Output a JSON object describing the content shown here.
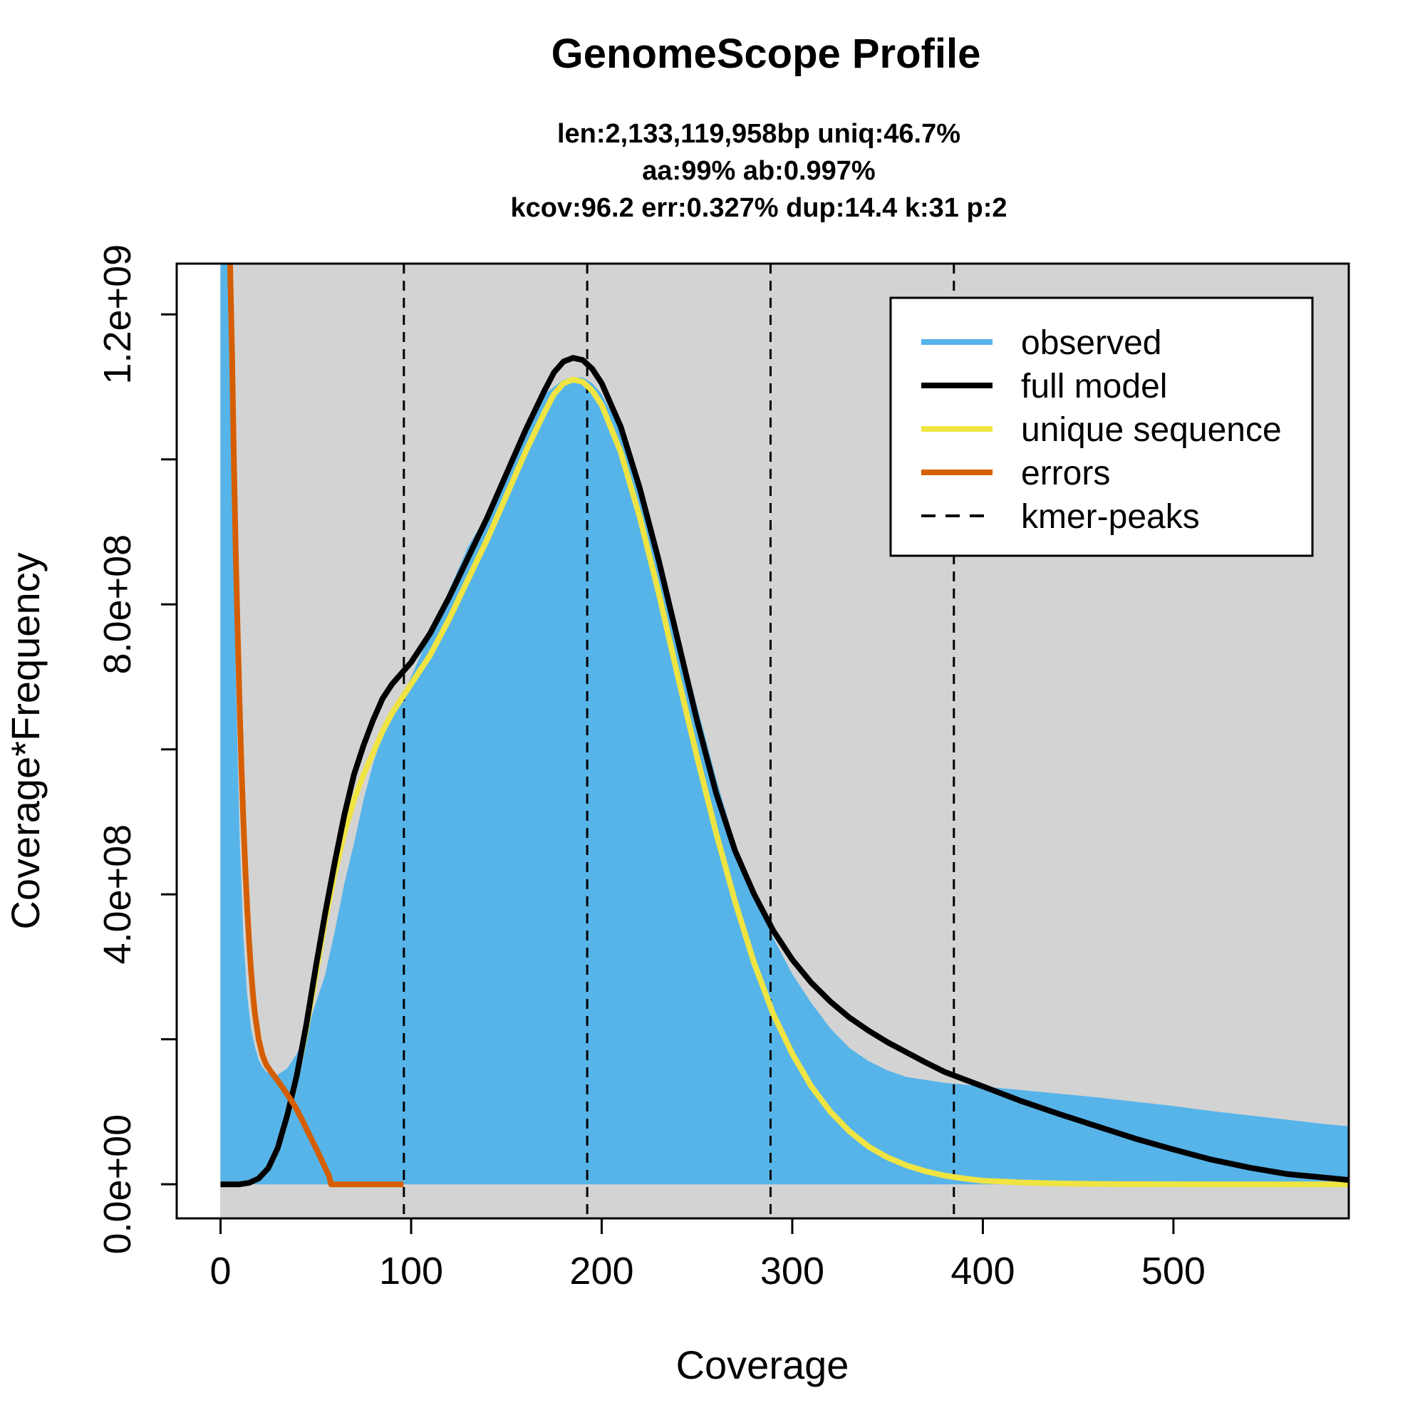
{
  "chart_data": {
    "type": "area",
    "title": "GenomeScope Profile",
    "subtitle_lines": [
      "len:2,133,119,958bp uniq:46.7%",
      "aa:99% ab:0.997%",
      "kcov:96.2 err:0.327%  dup:14.4  k:31 p:2"
    ],
    "xlabel": "Coverage",
    "ylabel": "Coverage*Frequency",
    "xlim": [
      -23,
      592
    ],
    "ylim": [
      -47000000,
      1270000000
    ],
    "x_ticks": [
      0,
      100,
      200,
      300,
      400,
      500
    ],
    "x_tick_labels": [
      "0",
      "100",
      "200",
      "300",
      "400",
      "500"
    ],
    "y_ticks": [
      0,
      200000000,
      400000000,
      600000000,
      800000000,
      1000000000,
      1200000000
    ],
    "y_tick_labels": [
      "0.0e+00",
      "",
      "4.0e+08",
      "",
      "8.0e+08",
      "",
      "1.2e+09"
    ],
    "grid": false,
    "background_color": "#d3d3d3",
    "legend_position": "top-right",
    "kmer_peaks": [
      96.2,
      192.4,
      288.6,
      384.8
    ],
    "series": [
      {
        "name": "observed",
        "style": "filled-area",
        "color": "#56b4e9",
        "x": [
          0,
          2,
          4,
          6,
          8,
          10,
          12,
          14,
          16,
          18,
          20,
          22,
          24,
          26,
          28,
          30,
          35,
          40,
          45,
          50,
          55,
          60,
          65,
          70,
          75,
          80,
          85,
          90,
          95,
          100,
          110,
          120,
          130,
          140,
          150,
          160,
          170,
          175,
          180,
          185,
          190,
          195,
          200,
          210,
          220,
          230,
          240,
          250,
          260,
          270,
          280,
          290,
          300,
          310,
          320,
          330,
          340,
          350,
          360,
          380,
          400,
          420,
          440,
          460,
          480,
          500,
          520,
          540,
          560,
          580,
          592
        ],
        "values": [
          1270000000,
          1270000000,
          1270000000,
          1000000000,
          700000000,
          480000000,
          340000000,
          260000000,
          215000000,
          190000000,
          172000000,
          162000000,
          155000000,
          152000000,
          150000000,
          151000000,
          160000000,
          180000000,
          210000000,
          250000000,
          290000000,
          350000000,
          415000000,
          470000000,
          530000000,
          580000000,
          620000000,
          650000000,
          670000000,
          700000000,
          760000000,
          820000000,
          880000000,
          925000000,
          980000000,
          1040000000,
          1090000000,
          1100000000,
          1110000000,
          1113000000,
          1113000000,
          1105000000,
          1090000000,
          1040000000,
          960000000,
          860000000,
          760000000,
          660000000,
          560000000,
          470000000,
          400000000,
          340000000,
          290000000,
          250000000,
          215000000,
          188000000,
          170000000,
          157000000,
          148000000,
          140000000,
          135000000,
          130000000,
          125000000,
          120000000,
          114000000,
          108000000,
          101000000,
          95000000,
          89000000,
          83000000,
          80000000
        ]
      },
      {
        "name": "full model",
        "style": "line",
        "color": "#000000",
        "x": [
          0,
          10,
          15,
          20,
          25,
          30,
          35,
          40,
          45,
          50,
          55,
          60,
          65,
          70,
          75,
          80,
          85,
          90,
          95,
          100,
          110,
          120,
          130,
          140,
          150,
          160,
          170,
          175,
          180,
          185,
          190,
          195,
          200,
          210,
          220,
          230,
          240,
          250,
          260,
          270,
          280,
          290,
          300,
          310,
          320,
          330,
          340,
          350,
          360,
          370,
          380,
          400,
          420,
          440,
          460,
          480,
          500,
          520,
          540,
          560,
          580,
          592
        ],
        "values": [
          0,
          0,
          2000000,
          8000000,
          22000000,
          50000000,
          95000000,
          150000000,
          220000000,
          300000000,
          375000000,
          445000000,
          510000000,
          565000000,
          605000000,
          640000000,
          670000000,
          690000000,
          705000000,
          720000000,
          760000000,
          810000000,
          865000000,
          920000000,
          980000000,
          1040000000,
          1095000000,
          1120000000,
          1135000000,
          1140000000,
          1137000000,
          1125000000,
          1105000000,
          1045000000,
          960000000,
          860000000,
          750000000,
          640000000,
          540000000,
          460000000,
          400000000,
          350000000,
          310000000,
          278000000,
          252000000,
          230000000,
          212000000,
          196000000,
          182000000,
          168000000,
          155000000,
          135000000,
          115000000,
          97000000,
          80000000,
          63000000,
          48000000,
          34000000,
          23000000,
          14000000,
          9000000,
          6000000
        ]
      },
      {
        "name": "unique sequence",
        "style": "line",
        "color": "#f0e442",
        "x": [
          0,
          10,
          15,
          20,
          25,
          30,
          35,
          40,
          45,
          50,
          55,
          60,
          65,
          70,
          75,
          80,
          85,
          90,
          95,
          100,
          110,
          120,
          130,
          140,
          150,
          160,
          170,
          175,
          180,
          185,
          190,
          195,
          200,
          210,
          220,
          230,
          240,
          250,
          260,
          270,
          280,
          290,
          300,
          310,
          320,
          330,
          340,
          350,
          360,
          370,
          380,
          390,
          400,
          420,
          440,
          460,
          480,
          500,
          520,
          540,
          560,
          580,
          592
        ],
        "values": [
          0,
          0,
          2000000,
          8000000,
          22000000,
          50000000,
          95000000,
          150000000,
          215000000,
          290000000,
          365000000,
          430000000,
          485000000,
          530000000,
          565000000,
          595000000,
          625000000,
          650000000,
          670000000,
          690000000,
          730000000,
          780000000,
          835000000,
          890000000,
          950000000,
          1010000000,
          1065000000,
          1090000000,
          1105000000,
          1110000000,
          1107000000,
          1095000000,
          1075000000,
          1010000000,
          920000000,
          815000000,
          700000000,
          590000000,
          485000000,
          390000000,
          305000000,
          235000000,
          180000000,
          135000000,
          100000000,
          73000000,
          52000000,
          37000000,
          26000000,
          18000000,
          12000000,
          8000000,
          5000000,
          2500000,
          1200000,
          500000,
          200000,
          100000,
          0,
          0,
          0,
          0,
          0
        ]
      },
      {
        "name": "errors",
        "style": "line",
        "color": "#d55e00",
        "x": [
          5,
          6,
          7,
          8,
          9,
          10,
          11,
          12,
          13,
          14,
          15,
          16,
          17,
          18,
          20,
          22,
          24,
          26,
          28,
          30,
          33,
          36,
          39,
          42,
          45,
          48,
          51,
          54,
          57,
          58,
          60,
          70,
          80,
          90,
          96
        ],
        "values": [
          1270000000,
          1150000000,
          1000000000,
          870000000,
          760000000,
          660000000,
          575000000,
          500000000,
          435000000,
          380000000,
          335000000,
          295000000,
          262000000,
          236000000,
          200000000,
          178000000,
          165000000,
          157000000,
          150000000,
          143000000,
          132000000,
          120000000,
          108000000,
          93000000,
          77000000,
          61000000,
          45000000,
          28000000,
          11000000,
          0,
          0,
          0,
          0,
          0,
          0
        ]
      }
    ]
  },
  "legend": [
    {
      "label": "observed",
      "color": "#56b4e9",
      "dash": false
    },
    {
      "label": "full model",
      "color": "#000000",
      "dash": false
    },
    {
      "label": "unique sequence",
      "color": "#f0e442",
      "dash": false
    },
    {
      "label": "errors",
      "color": "#d55e00",
      "dash": false
    },
    {
      "label": "kmer-peaks",
      "color": "#000000",
      "dash": true
    }
  ]
}
